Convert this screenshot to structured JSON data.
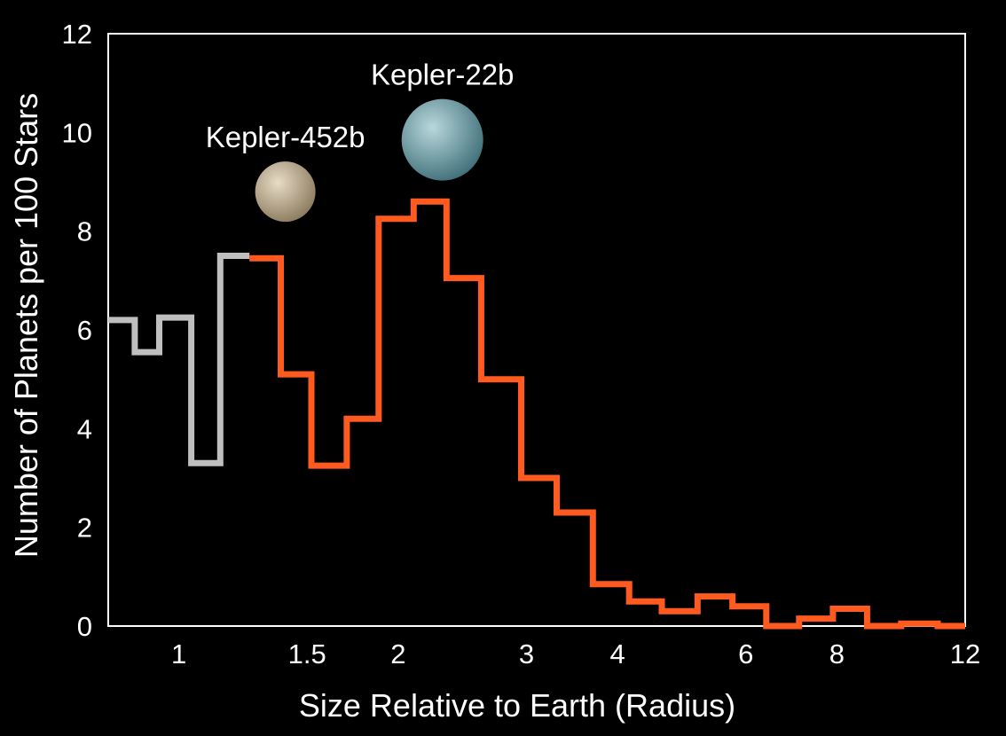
{
  "chart_data": {
    "type": "step",
    "title": "",
    "xlabel": "Size Relative to Earth (Radius)",
    "ylabel": "Number of Planets per 100 Stars",
    "xscale": "log",
    "xlim": [
      0.8,
      12
    ],
    "ylim": [
      0,
      12
    ],
    "x_ticks": [
      {
        "value": 1,
        "label": "1"
      },
      {
        "value": 1.5,
        "label": "1.5"
      },
      {
        "value": 2,
        "label": "2"
      },
      {
        "value": 3,
        "label": "3"
      },
      {
        "value": 4,
        "label": "4"
      },
      {
        "value": 6,
        "label": "6"
      },
      {
        "value": 8,
        "label": "8"
      },
      {
        "value": 12,
        "label": "12"
      }
    ],
    "y_ticks": [
      {
        "value": 0,
        "label": "0"
      },
      {
        "value": 2,
        "label": "2"
      },
      {
        "value": 4,
        "label": "4"
      },
      {
        "value": 6,
        "label": "6"
      },
      {
        "value": 8,
        "label": "8"
      },
      {
        "value": 10,
        "label": "10"
      },
      {
        "value": 12,
        "label": "12"
      }
    ],
    "grid": false,
    "legend": "none",
    "series": [
      {
        "color": "#bfbfbf",
        "bins": [
          {
            "x0": 0.8,
            "x1": 0.87,
            "y": 6.2
          },
          {
            "x0": 0.87,
            "x1": 0.94,
            "y": 5.55
          },
          {
            "x0": 0.94,
            "x1": 1.04,
            "y": 6.25
          },
          {
            "x0": 1.04,
            "x1": 1.14,
            "y": 3.3
          },
          {
            "x0": 1.14,
            "x1": 1.25,
            "y": 7.5
          }
        ]
      },
      {
        "color": "#ff5a1f",
        "bins": [
          {
            "x0": 1.25,
            "x1": 1.38,
            "y": 7.45
          },
          {
            "x0": 1.38,
            "x1": 1.52,
            "y": 5.1
          },
          {
            "x0": 1.52,
            "x1": 1.7,
            "y": 3.25
          },
          {
            "x0": 1.7,
            "x1": 1.88,
            "y": 4.2
          },
          {
            "x0": 1.88,
            "x1": 2.1,
            "y": 8.25
          },
          {
            "x0": 2.1,
            "x1": 2.33,
            "y": 8.6
          },
          {
            "x0": 2.33,
            "x1": 2.6,
            "y": 7.05
          },
          {
            "x0": 2.6,
            "x1": 2.95,
            "y": 5.0
          },
          {
            "x0": 2.95,
            "x1": 3.3,
            "y": 3.0
          },
          {
            "x0": 3.3,
            "x1": 3.7,
            "y": 2.3
          },
          {
            "x0": 3.7,
            "x1": 4.15,
            "y": 0.85
          },
          {
            "x0": 4.15,
            "x1": 4.6,
            "y": 0.5
          },
          {
            "x0": 4.6,
            "x1": 5.15,
            "y": 0.3
          },
          {
            "x0": 5.15,
            "x1": 5.75,
            "y": 0.6
          },
          {
            "x0": 5.75,
            "x1": 6.4,
            "y": 0.4
          },
          {
            "x0": 6.4,
            "x1": 7.1,
            "y": 0.0
          },
          {
            "x0": 7.1,
            "x1": 7.9,
            "y": 0.15
          },
          {
            "x0": 7.9,
            "x1": 8.8,
            "y": 0.35
          },
          {
            "x0": 8.8,
            "x1": 9.8,
            "y": 0.0
          },
          {
            "x0": 9.8,
            "x1": 11.0,
            "y": 0.05
          },
          {
            "x0": 11.0,
            "x1": 12.0,
            "y": 0.0
          }
        ]
      }
    ],
    "annotations": [
      {
        "text": "Kepler-452b",
        "x": 1.4,
        "y": 8.8,
        "planet_colors": [
          "#e8dcc6",
          "#8a7a5e"
        ]
      },
      {
        "text": "Kepler-22b",
        "x": 2.3,
        "y": 9.85,
        "planet_colors": [
          "#b8d8dc",
          "#3f6e78"
        ]
      }
    ]
  }
}
